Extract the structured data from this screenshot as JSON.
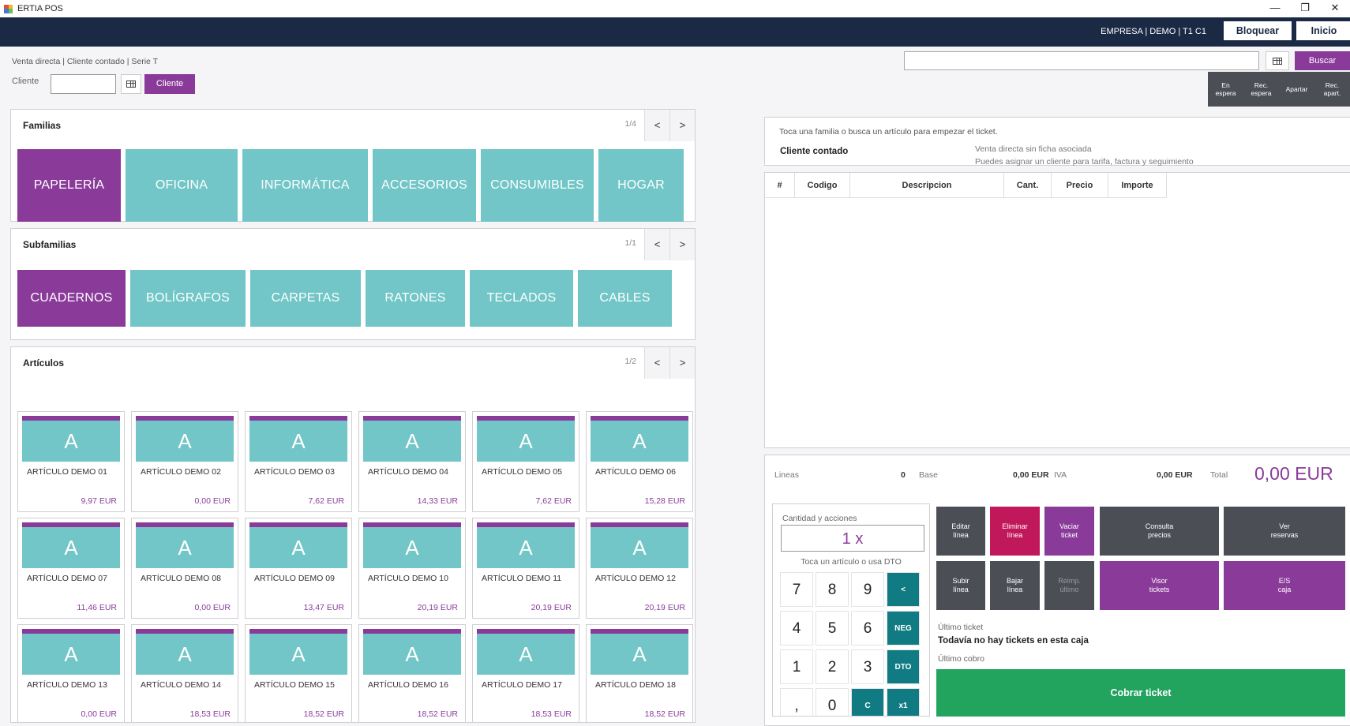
{
  "window": {
    "title": "ERTIA POS",
    "controls": [
      "—",
      "❐",
      "✕"
    ]
  },
  "topbar": {
    "company": "EMPRESA | DEMO | T1 C1",
    "lock_label": "Bloquear",
    "home_label": "Inicio"
  },
  "header": {
    "info": "Venta directa | Cliente contado | Serie T",
    "client_label": "Cliente",
    "client_value": "",
    "client_button": "Cliente",
    "search_value": "",
    "search_button": "Buscar",
    "quick_actions": [
      "En\nespera",
      "Rec.\nespera",
      "Apartar",
      "Rec.\napart."
    ]
  },
  "families": {
    "title": "Familias",
    "page": "1/4",
    "prev": "<",
    "next": ">",
    "items": [
      {
        "label": "PAPELERÍA",
        "selected": true
      },
      {
        "label": "OFICINA",
        "selected": false
      },
      {
        "label": "INFORMÁTICA",
        "selected": false
      },
      {
        "label": "ACCESORIOS",
        "selected": false
      },
      {
        "label": "CONSUMIBLES",
        "selected": false
      },
      {
        "label": "HOGAR",
        "selected": false
      }
    ]
  },
  "subfamilies": {
    "title": "Subfamilias",
    "page": "1/1",
    "prev": "<",
    "next": ">",
    "items": [
      {
        "label": "CUADERNOS",
        "selected": true
      },
      {
        "label": "BOLÍGRAFOS",
        "selected": false
      },
      {
        "label": "CARPETAS",
        "selected": false
      },
      {
        "label": "RATONES",
        "selected": false
      },
      {
        "label": "TECLADOS",
        "selected": false
      },
      {
        "label": "CABLES",
        "selected": false
      }
    ]
  },
  "articles": {
    "title": "Artículos",
    "page": "1/2",
    "prev": "<",
    "next": ">",
    "items": [
      {
        "letter": "A",
        "name": "ARTÍCULO DEMO 01",
        "price": "9,97 EUR"
      },
      {
        "letter": "A",
        "name": "ARTÍCULO DEMO 02",
        "price": "0,00 EUR"
      },
      {
        "letter": "A",
        "name": "ARTÍCULO DEMO 03",
        "price": "7,62 EUR"
      },
      {
        "letter": "A",
        "name": "ARTÍCULO DEMO 04",
        "price": "14,33 EUR"
      },
      {
        "letter": "A",
        "name": "ARTÍCULO DEMO 05",
        "price": "7,62 EUR"
      },
      {
        "letter": "A",
        "name": "ARTÍCULO DEMO 06",
        "price": "15,28 EUR"
      },
      {
        "letter": "A",
        "name": "ARTÍCULO DEMO 07",
        "price": "11,46 EUR"
      },
      {
        "letter": "A",
        "name": "ARTÍCULO DEMO 08",
        "price": "0,00 EUR"
      },
      {
        "letter": "A",
        "name": "ARTÍCULO DEMO 09",
        "price": "13,47 EUR"
      },
      {
        "letter": "A",
        "name": "ARTÍCULO DEMO 10",
        "price": "20,19 EUR"
      },
      {
        "letter": "A",
        "name": "ARTÍCULO DEMO 11",
        "price": "20,19 EUR"
      },
      {
        "letter": "A",
        "name": "ARTÍCULO DEMO 12",
        "price": "20,19 EUR"
      },
      {
        "letter": "A",
        "name": "ARTÍCULO DEMO 13",
        "price": "0,00 EUR"
      },
      {
        "letter": "A",
        "name": "ARTÍCULO DEMO 14",
        "price": "18,53 EUR"
      },
      {
        "letter": "A",
        "name": "ARTÍCULO DEMO 15",
        "price": "18,52 EUR"
      },
      {
        "letter": "A",
        "name": "ARTÍCULO DEMO 16",
        "price": "18,52 EUR"
      },
      {
        "letter": "A",
        "name": "ARTÍCULO DEMO 17",
        "price": "18,53 EUR"
      },
      {
        "letter": "A",
        "name": "ARTÍCULO DEMO 18",
        "price": "18,52 EUR"
      }
    ]
  },
  "ticket": {
    "hint": "Toca una familia o busca un artículo para empezar el ticket.",
    "client": "Cliente contado",
    "client_note": "Venta directa sin ficha asociada",
    "client_note2": "Puedes asignar un cliente para tarifa, factura y seguimiento",
    "columns": [
      "#",
      "Codigo",
      "Descripcion",
      "Cant.",
      "Precio",
      "Importe"
    ]
  },
  "totals": {
    "lines_label": "Lineas",
    "lines_value": "0",
    "base_label": "Base",
    "base_value": "0,00 EUR",
    "iva_label": "IVA",
    "iva_value": "0,00 EUR",
    "total_label": "Total",
    "total_value": "0,00 EUR"
  },
  "keypad": {
    "title": "Cantidad y acciones",
    "display": "1 x",
    "hint": "Toca un artículo o usa DTO",
    "keys": [
      "7",
      "8",
      "9",
      "<",
      "4",
      "5",
      "6",
      "NEG",
      "1",
      "2",
      "3",
      "DTO",
      ",",
      "0",
      "C",
      "x1"
    ]
  },
  "actions": {
    "edit_line": "Editar\nlínea",
    "delete_line": "Eliminar\nlínea",
    "empty_ticket": "Vaciar\nticket",
    "check_prices": "Consulta\nprecios",
    "view_reservations": "Ver\nreservas",
    "line_up": "Subir\nlínea",
    "line_down": "Bajar\nlínea",
    "reprint_last": "Reimp.\núltimo",
    "ticket_viewer": "Visor\ntickets",
    "cash_io": "E/S\ncaja"
  },
  "last": {
    "ticket_label": "Último ticket",
    "ticket_value": "Todavía no hay tickets en esta caja",
    "payment_label": "Último cobro"
  },
  "pay_button": "Cobrar ticket",
  "colors": {
    "navy": "#1b2a44",
    "teal": "#72c6c7",
    "purple": "#8a3b9a",
    "pink": "#c1185b",
    "green": "#22a35e",
    "dark_teal": "#117b83",
    "gray": "#4b4f55"
  }
}
